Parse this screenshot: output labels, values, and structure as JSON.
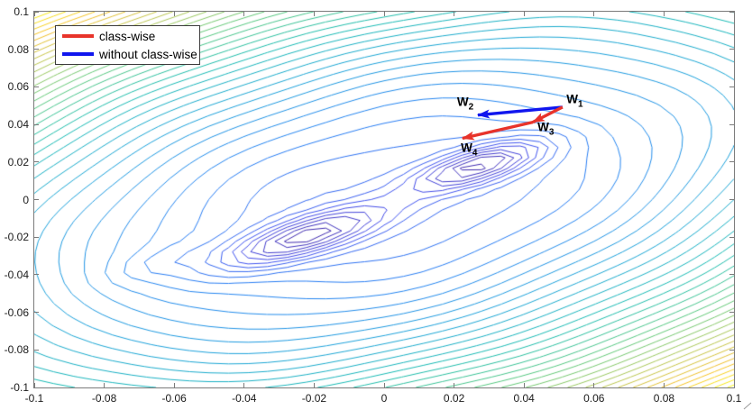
{
  "figure": {
    "background": "#ffffff"
  },
  "chart_data": {
    "type": "contour",
    "title": "",
    "xlabel": "",
    "ylabel": "",
    "xlim": [
      -0.1,
      0.1
    ],
    "ylim": [
      -0.1,
      0.1
    ],
    "grid": false,
    "x_tick_labels": [
      "-0.1",
      "-0.08",
      "-0.06",
      "-0.04",
      "-0.02",
      "0",
      "0.02",
      "0.04",
      "0.06",
      "0.08",
      "0.1"
    ],
    "y_tick_labels": [
      "-0.1",
      "-0.08",
      "-0.06",
      "-0.04",
      "-0.02",
      "0",
      "0.02",
      "0.04",
      "0.06",
      "0.08",
      "0.1"
    ],
    "n_levels": 40,
    "grid_cells": 36,
    "surface": {
      "description": "loss landscape: tilted elliptical bowl (high at top-left and bottom-right corners) with two elongated local minima along the valley diagonal",
      "rotation_deg": 32,
      "perp_coeff": 1.0,
      "diag_coeff": 0.35,
      "wells": [
        {
          "cx": -0.023,
          "cy": -0.02,
          "depth": 0.005,
          "sigma_u": 0.019,
          "sigma_v": 0.0062
        },
        {
          "cx": 0.027,
          "cy": 0.018,
          "depth": 0.005,
          "sigma_u": 0.015,
          "sigma_v": 0.0056
        },
        {
          "cx": -0.065,
          "cy": -0.034,
          "depth": 0.0009,
          "sigma_u": 0.011,
          "sigma_v": 0.005
        }
      ],
      "noise": {
        "amplitude": 0.00015,
        "fx1": 73,
        "fy1": 61,
        "fx2": 41,
        "fy2": 53
      }
    },
    "colormap": {
      "name": "parula",
      "stops": [
        [
          0.0,
          62,
          38,
          168
        ],
        [
          0.125,
          69,
          80,
          238
        ],
        [
          0.25,
          37,
          130,
          243
        ],
        [
          0.375,
          27,
          164,
          216
        ],
        [
          0.5,
          24,
          188,
          176
        ],
        [
          0.625,
          92,
          201,
          124
        ],
        [
          0.75,
          180,
          199,
          84
        ],
        [
          0.875,
          246,
          190,
          38
        ],
        [
          1.0,
          249,
          251,
          20
        ]
      ]
    },
    "legend": {
      "position": "top-left",
      "entries": [
        {
          "label": "class-wise",
          "color": "#e8332a"
        },
        {
          "label": "without class-wise",
          "color": "#1016ee"
        }
      ]
    },
    "trajectories": [
      {
        "name": "without class-wise",
        "color": "#1016ee",
        "points": [
          [
            0.051,
            0.0492
          ],
          [
            0.0268,
            0.045
          ]
        ]
      },
      {
        "name": "class-wise",
        "color": "#e8332a",
        "points": [
          [
            0.051,
            0.0492
          ],
          [
            0.0425,
            0.0412
          ],
          [
            0.0224,
            0.0326
          ]
        ]
      }
    ],
    "point_labels": [
      {
        "base": "W",
        "sub": "1",
        "x": 0.0545,
        "y": 0.052
      },
      {
        "base": "W",
        "sub": "2",
        "x": 0.0232,
        "y": 0.0508
      },
      {
        "base": "W",
        "sub": "3",
        "x": 0.0462,
        "y": 0.0372
      },
      {
        "base": "W",
        "sub": "4",
        "x": 0.0243,
        "y": 0.0262
      }
    ],
    "axis": {
      "box_color": "#7b7b7b",
      "tick_color": "#7b7b7b",
      "tick_label_color": "#1a1a1a",
      "tick_length": 5
    }
  }
}
